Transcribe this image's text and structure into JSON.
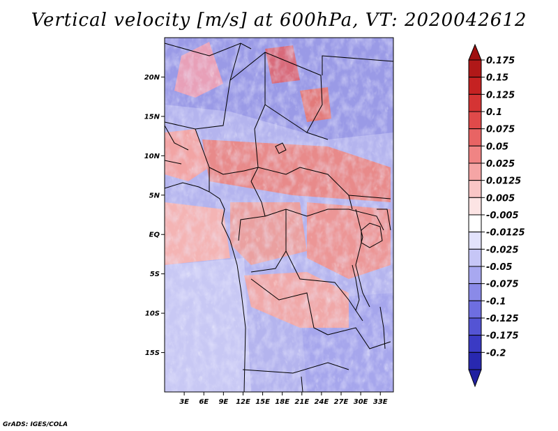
{
  "title": "Vertical velocity [m/s] at 600hPa, VT: 2020042612",
  "credit": "GrADS: IGES/COLA",
  "map": {
    "lon_range": [
      0,
      35
    ],
    "lat_range": [
      -20,
      25
    ],
    "lat_ticks": [
      {
        "value": 20,
        "label": "20N"
      },
      {
        "value": 15,
        "label": "15N"
      },
      {
        "value": 10,
        "label": "10N"
      },
      {
        "value": 5,
        "label": "5N"
      },
      {
        "value": 0,
        "label": "EQ"
      },
      {
        "value": -5,
        "label": "5S"
      },
      {
        "value": -10,
        "label": "10S"
      },
      {
        "value": -15,
        "label": "15S"
      }
    ],
    "lon_ticks": [
      {
        "value": 3,
        "label": "3E"
      },
      {
        "value": 6,
        "label": "6E"
      },
      {
        "value": 9,
        "label": "9E"
      },
      {
        "value": 12,
        "label": "12E"
      },
      {
        "value": 15,
        "label": "15E"
      },
      {
        "value": 18,
        "label": "18E"
      },
      {
        "value": 21,
        "label": "21E"
      },
      {
        "value": 24,
        "label": "24E"
      },
      {
        "value": 27,
        "label": "27E"
      },
      {
        "value": 30,
        "label": "30E"
      },
      {
        "value": 33,
        "label": "33E"
      }
    ]
  },
  "colorbar": {
    "levels": [
      {
        "label": "0.175",
        "color": "#b01818"
      },
      {
        "label": "0.15",
        "color": "#c52222"
      },
      {
        "label": "0.125",
        "color": "#d53434"
      },
      {
        "label": "0.1",
        "color": "#e04a4a"
      },
      {
        "label": "0.075",
        "color": "#e86464"
      },
      {
        "label": "0.05",
        "color": "#f08484"
      },
      {
        "label": "0.025",
        "color": "#f5a5a5"
      },
      {
        "label": "0.0125",
        "color": "#f9c6c6"
      },
      {
        "label": "0.005",
        "color": "#fce4e4"
      },
      {
        "label": "-0.005",
        "color": "#ffffff"
      },
      {
        "label": "-0.0125",
        "color": "#e2e2fb"
      },
      {
        "label": "-0.025",
        "color": "#c6c6f6"
      },
      {
        "label": "-0.05",
        "color": "#a8a8f0"
      },
      {
        "label": "-0.075",
        "color": "#8a8ae8"
      },
      {
        "label": "-0.1",
        "color": "#6e6ee0"
      },
      {
        "label": "-0.125",
        "color": "#5454d4"
      },
      {
        "label": "-0.175",
        "color": "#3a3ac4"
      },
      {
        "label": "-0.2",
        "color": "#2828b0"
      }
    ],
    "top_cap_color": "#a01010",
    "bottom_cap_color": "#2020a0"
  }
}
